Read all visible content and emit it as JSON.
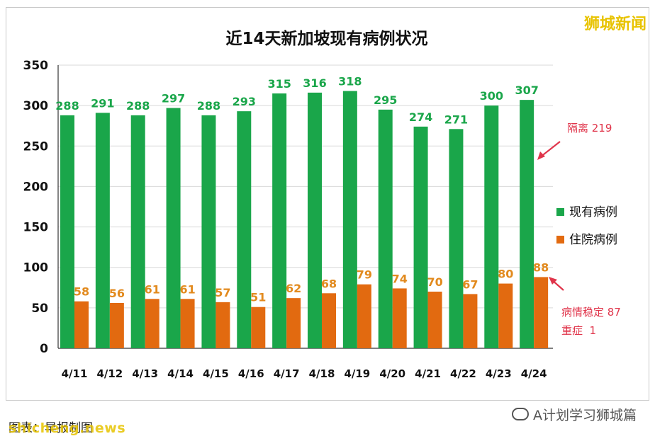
{
  "brand": "狮城新闻",
  "footer": {
    "caption": "图表：早报制图",
    "watermark": "shicheng.news",
    "account": "A计划学习狮城篇"
  },
  "annotations": {
    "isolation": "隔离 219",
    "stable": "病情稳定 87",
    "severe": "重症  1"
  },
  "colors": {
    "green": "#1aa64a",
    "orange": "#e26a10",
    "green_label": "#1aa64a",
    "orange_label": "#e28a1e",
    "annotation_red": "#e0354b",
    "grid": "#d9d9d9",
    "title": "#111111"
  },
  "chart_data": {
    "type": "bar",
    "title": "近14天新加坡现有病例状况",
    "categories": [
      "4/11",
      "4/12",
      "4/13",
      "4/14",
      "4/15",
      "4/16",
      "4/17",
      "4/18",
      "4/19",
      "4/20",
      "4/21",
      "4/22",
      "4/23",
      "4/24"
    ],
    "series": [
      {
        "name": "现有病例",
        "values": [
          288,
          291,
          288,
          297,
          288,
          293,
          315,
          316,
          318,
          295,
          274,
          271,
          300,
          307
        ]
      },
      {
        "name": "住院病例",
        "values": [
          58,
          56,
          61,
          61,
          57,
          51,
          62,
          68,
          79,
          74,
          70,
          67,
          80,
          88
        ]
      }
    ],
    "ylim": [
      0,
      350
    ],
    "yticks": [
      0,
      50,
      100,
      150,
      200,
      250,
      300,
      350
    ],
    "grid": true,
    "legend": "right"
  }
}
